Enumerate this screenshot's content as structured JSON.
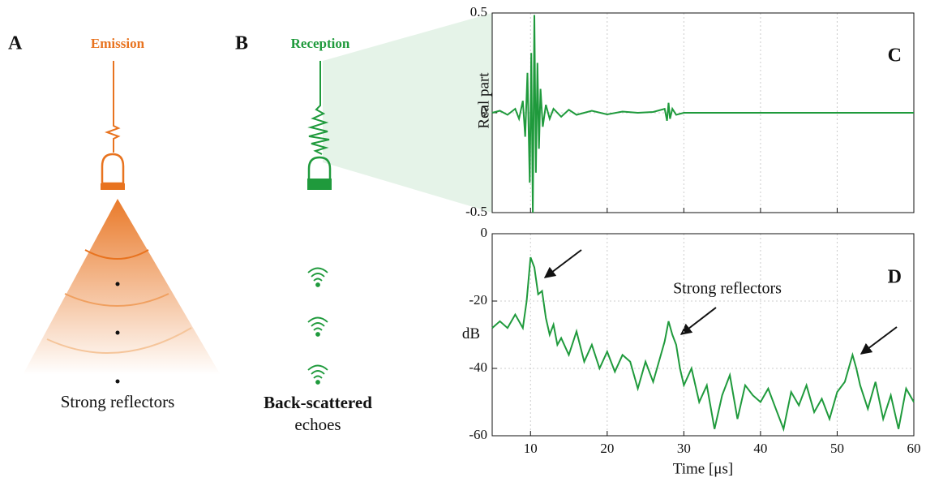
{
  "panels": {
    "a": {
      "letter": "A",
      "title": "Emission",
      "caption": "Strong reflectors"
    },
    "b": {
      "letter": "B",
      "title": "Reception",
      "caption_bold": "Back-scattered",
      "caption": "echoes"
    }
  },
  "chart_data": [
    {
      "type": "line",
      "label": "C",
      "ylabel": "Real part",
      "x": [
        5,
        6,
        7,
        8,
        8.5,
        9,
        9.3,
        9.6,
        9.9,
        10.1,
        10.3,
        10.5,
        10.7,
        10.9,
        11.1,
        11.3,
        11.6,
        12,
        12.5,
        13,
        14,
        15,
        16,
        18,
        20,
        22,
        24,
        26,
        27.5,
        27.8,
        28,
        28.2,
        28.5,
        29,
        30,
        35,
        40,
        50,
        60
      ],
      "series": [
        {
          "color": "#1f9a3c",
          "values": [
            0,
            0.01,
            -0.01,
            0.02,
            -0.03,
            0.06,
            -0.12,
            0.2,
            -0.35,
            0.3,
            -0.5,
            0.49,
            -0.3,
            0.25,
            -0.18,
            0.12,
            -0.07,
            0.04,
            -0.03,
            0.02,
            -0.02,
            0.015,
            -0.01,
            0.01,
            -0.008,
            0.006,
            0,
            0.004,
            0.02,
            -0.04,
            0.05,
            -0.03,
            0.02,
            -0.01,
            0,
            0,
            0,
            0,
            0
          ]
        }
      ],
      "xlim": [
        5,
        60
      ],
      "ylim": [
        -0.5,
        0.5
      ],
      "xticks": [
        10,
        20,
        30,
        40,
        50,
        60
      ],
      "yticks": [
        -0.5,
        0,
        0.5
      ],
      "grid": true,
      "xtick_labels": false
    },
    {
      "type": "line",
      "label": "D",
      "ylabel": "dB",
      "xlabel": "Time [μs]",
      "annotation": "Strong reflectors",
      "x": [
        5,
        6,
        7,
        8,
        9,
        9.5,
        10,
        10.5,
        11,
        11.5,
        12,
        12.5,
        13,
        13.5,
        14,
        15,
        16,
        17,
        18,
        19,
        20,
        21,
        22,
        23,
        24,
        25,
        26,
        27,
        27.5,
        28,
        28.5,
        29,
        29.5,
        30,
        31,
        32,
        33,
        34,
        35,
        36,
        37,
        38,
        39,
        40,
        41,
        42,
        43,
        44,
        45,
        46,
        47,
        48,
        49,
        50,
        51,
        51.5,
        52,
        52.5,
        53,
        54,
        55,
        56,
        57,
        58,
        59,
        60
      ],
      "series": [
        {
          "color": "#1f9a3c",
          "values": [
            -28,
            -26,
            -28,
            -24,
            -28,
            -20,
            -7,
            -10,
            -18,
            -17,
            -25,
            -30,
            -27,
            -33,
            -31,
            -36,
            -29,
            -38,
            -33,
            -40,
            -35,
            -41,
            -36,
            -38,
            -46,
            -38,
            -44,
            -36,
            -32,
            -26,
            -30,
            -33,
            -40,
            -45,
            -40,
            -50,
            -45,
            -58,
            -48,
            -42,
            -55,
            -45,
            -48,
            -50,
            -46,
            -52,
            -58,
            -47,
            -51,
            -45,
            -53,
            -49,
            -55,
            -47,
            -44,
            -40,
            -36,
            -40,
            -45,
            -52,
            -44,
            -55,
            -48,
            -58,
            -46,
            -50
          ]
        }
      ],
      "xlim": [
        5,
        60
      ],
      "ylim": [
        -60,
        0
      ],
      "xticks": [
        10,
        20,
        30,
        40,
        50,
        60
      ],
      "yticks": [
        -60,
        -40,
        -20,
        0
      ],
      "grid": true,
      "xtick_labels": true
    }
  ]
}
